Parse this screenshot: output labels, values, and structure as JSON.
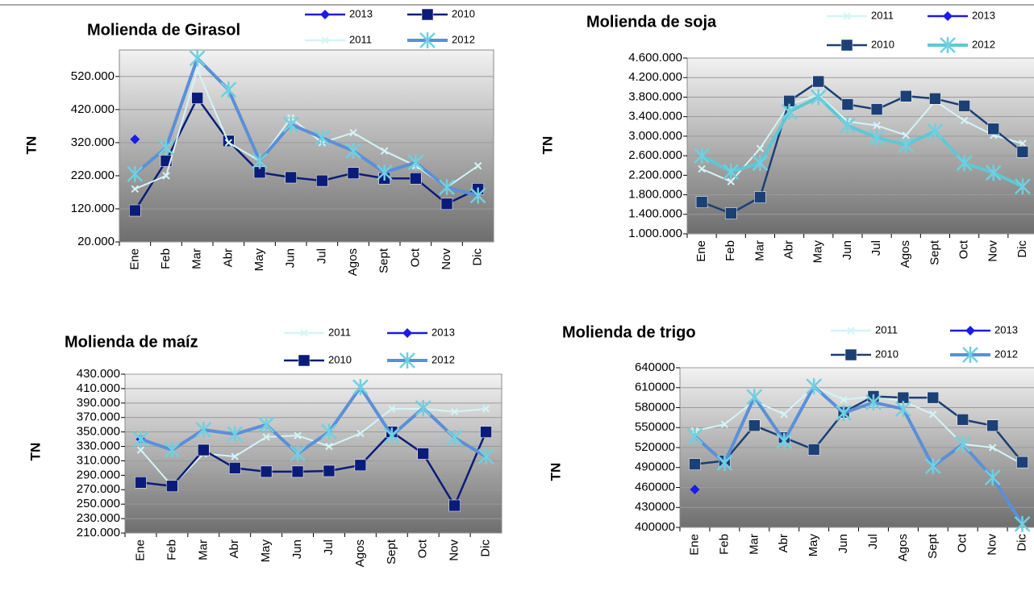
{
  "chart_data": [
    {
      "type": "line",
      "title": "Molienda de Girasol",
      "y_label": "TN",
      "categories": [
        "Ene",
        "Feb",
        "Mar",
        "Abr",
        "May",
        "Jun",
        "Jul",
        "Agos",
        "Sept",
        "Oct",
        "Nov",
        "Dic"
      ],
      "ylim": [
        20000,
        600000
      ],
      "yticks": [
        {
          "value": 20000,
          "label": "20.000"
        },
        {
          "value": 120000,
          "label": "120.000"
        },
        {
          "value": 220000,
          "label": "220.000"
        },
        {
          "value": 320000,
          "label": "320.000"
        },
        {
          "value": 420000,
          "label": "420.000"
        },
        {
          "value": 520000,
          "label": "520.000"
        }
      ],
      "grid": true,
      "series": [
        {
          "name": "2013",
          "color": "#1a1aeb",
          "marker": "diamond",
          "values": [
            330000,
            null,
            null,
            null,
            null,
            null,
            null,
            null,
            null,
            null,
            null,
            null
          ]
        },
        {
          "name": "2010",
          "color": "#0b1c78",
          "marker": "square",
          "values": [
            115000,
            265000,
            455000,
            325000,
            230000,
            215000,
            205000,
            228000,
            212000,
            212000,
            135000,
            180000
          ]
        },
        {
          "name": "2011",
          "color": "#d4f4f6",
          "marker": "cross",
          "values": [
            180000,
            220000,
            540000,
            320000,
            265000,
            395000,
            320000,
            350000,
            295000,
            250000,
            185000,
            250000
          ]
        },
        {
          "name": "2012",
          "color": "#5b8fd8",
          "marker": "star",
          "values": [
            225000,
            305000,
            575000,
            480000,
            265000,
            375000,
            335000,
            295000,
            230000,
            260000,
            185000,
            160000
          ]
        }
      ]
    },
    {
      "type": "line",
      "title": "Molienda de soja",
      "y_label": "TN",
      "categories": [
        "Ene",
        "Feb",
        "Mar",
        "Abr",
        "May",
        "Jun",
        "Jul",
        "Agos",
        "Sept",
        "Oct",
        "Nov",
        "Dic"
      ],
      "ylim": [
        1000000,
        4600000
      ],
      "yticks": [
        {
          "value": 1000000,
          "label": "1.000.000"
        },
        {
          "value": 1400000,
          "label": "1.400.000"
        },
        {
          "value": 1800000,
          "label": "1.800.000"
        },
        {
          "value": 2200000,
          "label": "2.200.000"
        },
        {
          "value": 2600000,
          "label": "2.600.000"
        },
        {
          "value": 3000000,
          "label": "3.000.000"
        },
        {
          "value": 3400000,
          "label": "3.400.000"
        },
        {
          "value": 3800000,
          "label": "3.800.000"
        },
        {
          "value": 4200000,
          "label": "4.200.000"
        },
        {
          "value": 4600000,
          "label": "4.600.000"
        }
      ],
      "grid": true,
      "series": [
        {
          "name": "2011",
          "color": "#d4f4f6",
          "marker": "cross",
          "values": [
            2330000,
            2070000,
            2750000,
            3650000,
            3850000,
            3300000,
            3220000,
            3020000,
            3720000,
            3320000,
            3020000,
            2850000
          ]
        },
        {
          "name": "2013",
          "color": "#1a1aeb",
          "marker": "diamond",
          "values": [
            null,
            null,
            null,
            null,
            null,
            null,
            null,
            null,
            null,
            null,
            null,
            null
          ]
        },
        {
          "name": "2010",
          "color": "#1c3f74",
          "marker": "square",
          "values": [
            1650000,
            1420000,
            1750000,
            3720000,
            4120000,
            3650000,
            3550000,
            3820000,
            3770000,
            3620000,
            3150000,
            2680000
          ]
        },
        {
          "name": "2012",
          "color": "#5ec8d4",
          "marker": "star",
          "values": [
            2600000,
            2270000,
            2450000,
            3500000,
            3800000,
            3220000,
            2970000,
            2820000,
            3100000,
            2450000,
            2250000,
            1970000
          ]
        }
      ]
    },
    {
      "type": "line",
      "title": "Molienda de maíz",
      "y_label": "TN",
      "categories": [
        "Ene",
        "Feb",
        "Mar",
        "Abr",
        "May",
        "Jun",
        "Jul",
        "Agos",
        "Sept",
        "Oct",
        "Nov",
        "Dic"
      ],
      "ylim": [
        210000,
        430000
      ],
      "yticks": [
        {
          "value": 210000,
          "label": "210.000"
        },
        {
          "value": 230000,
          "label": "230.000"
        },
        {
          "value": 250000,
          "label": "250.000"
        },
        {
          "value": 270000,
          "label": "270.000"
        },
        {
          "value": 290000,
          "label": "290.000"
        },
        {
          "value": 310000,
          "label": "310.000"
        },
        {
          "value": 330000,
          "label": "330.000"
        },
        {
          "value": 350000,
          "label": "350.000"
        },
        {
          "value": 370000,
          "label": "370.000"
        },
        {
          "value": 390000,
          "label": "390.000"
        },
        {
          "value": 410000,
          "label": "410.000"
        },
        {
          "value": 430000,
          "label": "430.000"
        }
      ],
      "grid": true,
      "series": [
        {
          "name": "2011",
          "color": "#d4f4f6",
          "marker": "cross",
          "values": [
            325000,
            275000,
            320000,
            316000,
            343000,
            345000,
            330000,
            348000,
            382000,
            382000,
            378000,
            382000
          ]
        },
        {
          "name": "2013",
          "color": "#1a1aeb",
          "marker": "diamond",
          "values": [
            340000,
            null,
            null,
            null,
            null,
            null,
            null,
            null,
            null,
            null,
            null,
            null
          ]
        },
        {
          "name": "2010",
          "color": "#0b1c78",
          "marker": "square",
          "values": [
            280000,
            275000,
            325000,
            300000,
            295000,
            295000,
            296000,
            304000,
            350000,
            320000,
            248000,
            350000
          ]
        },
        {
          "name": "2012",
          "color": "#5b8fd8",
          "marker": "star",
          "values": [
            340000,
            325000,
            353000,
            347000,
            360000,
            320000,
            350000,
            412000,
            345000,
            383000,
            342000,
            316000
          ]
        }
      ]
    },
    {
      "type": "line",
      "title": "Molienda de trigo",
      "y_label": "TN",
      "categories": [
        "Ene",
        "Feb",
        "Mar",
        "Abr",
        "May",
        "Jun",
        "Jul",
        "Agos",
        "Sept",
        "Oct",
        "Nov",
        "Dic"
      ],
      "ylim": [
        400000,
        640000
      ],
      "yticks": [
        400000,
        430000,
        460000,
        490000,
        520000,
        550000,
        580000,
        610000,
        640000
      ],
      "grid": true,
      "series": [
        {
          "name": "2011",
          "color": "#d4f4f6",
          "marker": "cross",
          "values": [
            545000,
            555000,
            590000,
            570000,
            612000,
            592000,
            597000,
            590000,
            570000,
            525000,
            520000,
            495000
          ]
        },
        {
          "name": "2013",
          "color": "#1a1aeb",
          "marker": "diamond",
          "values": [
            457000,
            null,
            null,
            null,
            null,
            null,
            null,
            null,
            null,
            null,
            null,
            null
          ]
        },
        {
          "name": "2010",
          "color": "#1c3f74",
          "marker": "square",
          "values": [
            495000,
            500000,
            553000,
            535000,
            517000,
            573000,
            597000,
            595000,
            595000,
            562000,
            553000,
            498000
          ]
        },
        {
          "name": "2012",
          "color": "#5b8fd8",
          "marker": "star",
          "values": [
            537000,
            497000,
            596000,
            530000,
            612000,
            572000,
            588000,
            578000,
            492000,
            525000,
            475000,
            405000
          ]
        }
      ]
    }
  ]
}
